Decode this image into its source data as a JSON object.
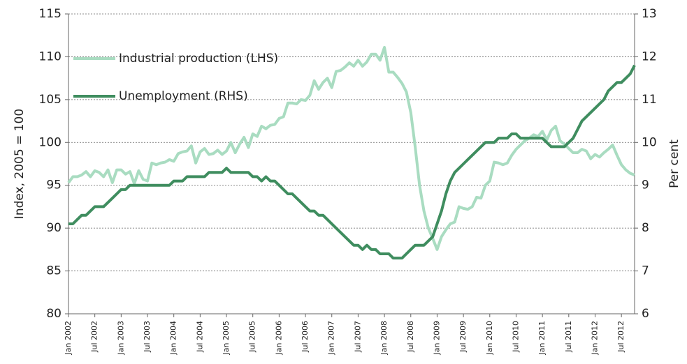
{
  "chart_data": {
    "type": "line",
    "y_label": "Index, 2005 = 100",
    "y2_label": "Per cent",
    "categories": [
      "Jan 2002",
      null,
      null,
      null,
      null,
      null,
      "Jul 2002",
      null,
      null,
      null,
      null,
      null,
      "Jan 2003",
      null,
      null,
      null,
      null,
      null,
      "Jul 2003",
      null,
      null,
      null,
      null,
      null,
      "Jan 2004",
      null,
      null,
      null,
      null,
      null,
      "Jul 2004",
      null,
      null,
      null,
      null,
      null,
      "Jan 2005",
      null,
      null,
      null,
      null,
      null,
      "Jul 2005",
      null,
      null,
      null,
      null,
      null,
      "Jan 2006",
      null,
      null,
      null,
      null,
      null,
      "Jul 2006",
      null,
      null,
      null,
      null,
      null,
      "Jan 2007",
      null,
      null,
      null,
      null,
      null,
      "Jul 2007",
      null,
      null,
      null,
      null,
      null,
      "Jan 2008",
      null,
      null,
      null,
      null,
      null,
      "Jul 2008",
      null,
      null,
      null,
      null,
      null,
      "Jan 2009",
      null,
      null,
      null,
      null,
      null,
      "Jul 2009",
      null,
      null,
      null,
      null,
      null,
      "Jan 2010",
      null,
      null,
      null,
      null,
      null,
      "Jul 2010",
      null,
      null,
      null,
      null,
      null,
      "Jan 2011",
      null,
      null,
      null,
      null,
      null,
      "Jul 2011",
      null,
      null,
      null,
      null,
      null,
      "Jan 2012",
      null,
      null,
      null,
      null,
      null,
      "Jul 2012",
      null,
      null,
      null
    ],
    "series": [
      {
        "name": "Industrial production (LHS)",
        "color": "#a9dcc1",
        "axis": "y",
        "values": [
          95.3,
          96,
          96,
          96.2,
          96.6,
          96,
          96.7,
          96.5,
          96,
          96.8,
          95.3,
          96.8,
          96.8,
          96.3,
          96.6,
          95.2,
          96.7,
          95.7,
          95.5,
          97.6,
          97.4,
          97.6,
          97.7,
          98,
          97.8,
          98.7,
          98.9,
          99,
          99.6,
          97.6,
          98.9,
          99.3,
          98.6,
          98.7,
          99.1,
          98.6,
          99,
          100,
          98.8,
          99.8,
          100.6,
          99.4,
          101,
          100.7,
          101.9,
          101.6,
          102,
          102.1,
          102.8,
          103,
          104.6,
          104.6,
          104.5,
          105,
          104.9,
          105.5,
          107.2,
          106.2,
          107,
          107.5,
          106.4,
          108.3,
          108.4,
          108.8,
          109.3,
          108.9,
          109.6,
          108.9,
          109.4,
          110.3,
          110.3,
          109.6,
          111.1,
          108.2,
          108.2,
          107.6,
          106.9,
          105.9,
          103.5,
          99.5,
          95,
          92,
          90,
          88.8,
          87.5,
          89,
          89.8,
          90.5,
          90.7,
          92.5,
          92.3,
          92.2,
          92.5,
          93.6,
          93.5,
          95,
          95.5,
          97.7,
          97.6,
          97.4,
          97.6,
          98.5,
          99.2,
          99.7,
          100.2,
          100.5,
          100.9,
          100.7,
          101.3,
          100.3,
          101.4,
          101.9,
          100.2,
          99.8,
          99.3,
          98.8,
          98.8,
          99.2,
          99,
          98.1,
          98.6,
          98.3,
          98.8,
          99.2,
          99.7,
          98.5,
          97.4,
          96.8,
          96.4,
          96.2
        ]
      },
      {
        "name": "Unemployment (RHS)",
        "color": "#3f8d5f",
        "axis": "y2",
        "values": [
          8.1,
          8.1,
          8.2,
          8.3,
          8.3,
          8.4,
          8.5,
          8.5,
          8.5,
          8.6,
          8.7,
          8.8,
          8.9,
          8.9,
          9,
          9,
          9,
          9,
          9,
          9,
          9,
          9,
          9,
          9,
          9.1,
          9.1,
          9.1,
          9.2,
          9.2,
          9.2,
          9.2,
          9.2,
          9.3,
          9.3,
          9.3,
          9.3,
          9.4,
          9.3,
          9.3,
          9.3,
          9.3,
          9.3,
          9.2,
          9.2,
          9.1,
          9.2,
          9.1,
          9.1,
          9,
          8.9,
          8.8,
          8.8,
          8.7,
          8.6,
          8.5,
          8.4,
          8.4,
          8.3,
          8.3,
          8.2,
          8.1,
          8,
          7.9,
          7.8,
          7.7,
          7.6,
          7.6,
          7.5,
          7.6,
          7.5,
          7.5,
          7.4,
          7.4,
          7.4,
          7.3,
          7.3,
          7.3,
          7.4,
          7.5,
          7.6,
          7.6,
          7.6,
          7.7,
          7.8,
          8.1,
          8.4,
          8.8,
          9.1,
          9.3,
          9.4,
          9.5,
          9.6,
          9.7,
          9.8,
          9.9,
          10,
          10,
          10,
          10.1,
          10.1,
          10.1,
          10.2,
          10.2,
          10.1,
          10.1,
          10.1,
          10.1,
          10.1,
          10.1,
          10,
          9.9,
          9.9,
          9.9,
          9.9,
          10,
          10.1,
          10.3,
          10.5,
          10.6,
          10.7,
          10.8,
          10.9,
          11,
          11.2,
          11.3,
          11.4,
          11.4,
          11.5,
          11.6,
          11.8
        ]
      }
    ],
    "ylim": [
      80,
      115
    ],
    "yticks": [
      80,
      85,
      90,
      95,
      100,
      105,
      110,
      115
    ],
    "y2lim": [
      6,
      13
    ],
    "y2ticks": [
      6,
      7,
      8,
      9,
      10,
      11,
      12,
      13
    ],
    "grid": true,
    "legend": "top-left"
  }
}
